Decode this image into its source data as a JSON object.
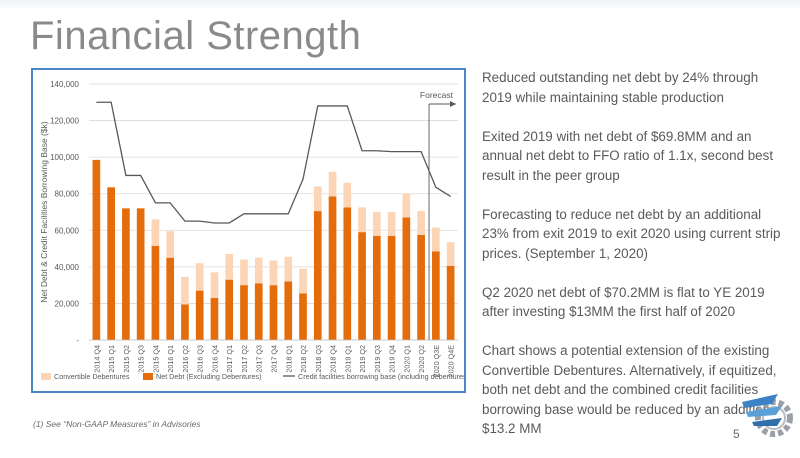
{
  "slide": {
    "title": "Financial Strength",
    "footnote": "(1)  See “Non-GAAP Measures” in Advisories",
    "page_number": "5",
    "logo_icon": "company-gear-logo-icon"
  },
  "bullets": [
    "Reduced outstanding net debt by 24% through 2019 while maintaining stable production",
    "Exited 2019 with net debt of $69.8MM and an annual net debt to FFO ratio of 1.1x, second best result in the peer group",
    "Forecasting to reduce net debt by an additional 23% from exit 2019 to exit 2020 using current strip prices. (September 1, 2020)",
    "Q2 2020 net debt of $70.2MM is flat to YE 2019 after investing $13MM the first half of 2020",
    "Chart shows a potential extension of the existing Convertible Debentures. Alternatively, if equitized, both net debt and the combined credit facilities borrowing base would be reduced by an additional $13.2 MM"
  ],
  "chart_data": {
    "type": "bar",
    "stacked": true,
    "ylabel": "Net Debt & Credit Facilities Borrowing Base ($k)",
    "ylim": [
      0,
      140000
    ],
    "yticks": [
      0,
      20000,
      40000,
      60000,
      80000,
      100000,
      120000,
      140000
    ],
    "ytick_labels": [
      "-",
      "20,000",
      "40,000",
      "60,000",
      "80,000",
      "100,000",
      "120,000",
      "140,000"
    ],
    "grid": true,
    "legend_position": "bottom",
    "categories": [
      "2014 Q4",
      "2015 Q1",
      "2015 Q2",
      "2015 Q3",
      "2015 Q4",
      "2016 Q1",
      "2016 Q2",
      "2016 Q3",
      "2016 Q4",
      "2017 Q1",
      "2017 Q2",
      "2017 Q3",
      "2017 Q4",
      "2018 Q1",
      "2018 Q2",
      "2018 Q3",
      "2018 Q4",
      "2019 Q1",
      "2019 Q2",
      "2019 Q3",
      "2019 Q4",
      "2020 Q1",
      "2020 Q2",
      "2020 Q3E",
      "2020 Q4E"
    ],
    "series": [
      {
        "name": "Net Debt (Excluding Debentures)",
        "type": "bar",
        "color": "#e46c0a",
        "values": [
          98500,
          83500,
          72000,
          72000,
          51500,
          45000,
          19500,
          27000,
          23000,
          33000,
          30000,
          31000,
          30000,
          32000,
          25500,
          70500,
          78500,
          72500,
          59000,
          57000,
          57000,
          67000,
          57500,
          48500,
          40500
        ]
      },
      {
        "name": "Convertible Debentures",
        "type": "bar",
        "color": "#fbd5b5",
        "values": [
          0,
          0,
          0,
          0,
          14500,
          14500,
          15000,
          15000,
          14000,
          14000,
          14000,
          14000,
          13500,
          13500,
          13500,
          13500,
          13500,
          13500,
          13500,
          13000,
          13000,
          13000,
          13000,
          13000,
          13000
        ]
      },
      {
        "name": "Credit facilities borrowing base (including debentures)",
        "type": "line",
        "color": "#595959",
        "values": [
          130000,
          130000,
          90000,
          90000,
          75000,
          75000,
          65000,
          65000,
          64000,
          64000,
          69000,
          69000,
          69000,
          69000,
          88000,
          128000,
          128000,
          128000,
          103500,
          103500,
          103000,
          103000,
          103000,
          83500,
          78500
        ]
      }
    ],
    "annotations": [
      {
        "text": "Forecast",
        "type": "bracket",
        "from_category": "2020 Q3E",
        "to_category": "2020 Q4E"
      }
    ]
  }
}
